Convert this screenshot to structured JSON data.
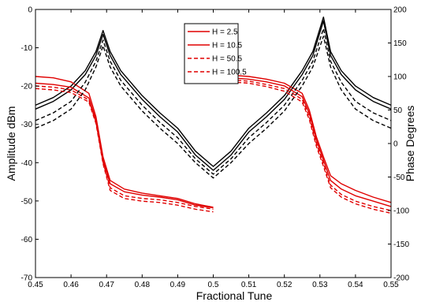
{
  "chart_data": {
    "type": "line",
    "xlabel": "Fractional Tune",
    "ylabel_left": "Amplitude dBm",
    "ylabel_right": "Phase Degrees",
    "xlim": [
      0.45,
      0.55
    ],
    "ylim_left": [
      -70,
      0
    ],
    "ylim_right": [
      -200,
      200
    ],
    "x_ticks": [
      "0.45",
      "0.46",
      "0.47",
      "0.48",
      "0.49",
      "0.5",
      "0.51",
      "0.52",
      "0.53",
      "0.54",
      "0.55"
    ],
    "y_ticks_left": [
      "-70",
      "-60",
      "-50",
      "-40",
      "-30",
      "-20",
      "-10",
      "0"
    ],
    "y_ticks_right": [
      "-200",
      "-150",
      "-100",
      "-50",
      "0",
      "50",
      "100",
      "150",
      "200"
    ],
    "grid": false,
    "legend_position": "top-center",
    "colors": {
      "amplitude": "#000000",
      "phase": "#e00000"
    },
    "series": [
      {
        "name": "H = 2.5",
        "style": "solid",
        "amplitude": {
          "x": [
            0.45,
            0.455,
            0.46,
            0.464,
            0.467,
            0.469,
            0.471,
            0.474,
            0.48,
            0.485,
            0.49,
            0.495,
            0.5,
            0.505,
            0.51,
            0.515,
            0.52,
            0.525,
            0.528,
            0.531,
            0.533,
            0.536,
            0.54,
            0.545,
            0.55
          ],
          "y": [
            -25,
            -23,
            -20,
            -16,
            -11,
            -5.5,
            -11,
            -16,
            -22.5,
            -27,
            -31,
            -37,
            -41,
            -37,
            -31,
            -27,
            -22.5,
            -16,
            -11,
            -2,
            -11,
            -16,
            -20,
            -23,
            -25
          ]
        },
        "phase": {
          "x": [
            0.45,
            0.455,
            0.46,
            0.465,
            0.467,
            0.469,
            0.471,
            0.475,
            0.48,
            0.485,
            0.49,
            0.495,
            0.5,
            0.505,
            0.51,
            0.515,
            0.52,
            0.525,
            0.527,
            0.529,
            0.531,
            0.533,
            0.536,
            0.54,
            0.545,
            0.55
          ],
          "y": [
            100,
            98,
            92,
            75,
            40,
            -20,
            -55,
            -68,
            -74,
            -78,
            -82,
            -90,
            -95,
            102,
            100,
            96,
            90,
            75,
            50,
            10,
            -20,
            -48,
            -60,
            -70,
            -80,
            -88
          ]
        }
      },
      {
        "name": "H = 10.5",
        "style": "solid",
        "amplitude": {
          "x": [
            0.45,
            0.455,
            0.46,
            0.464,
            0.467,
            0.469,
            0.471,
            0.474,
            0.48,
            0.485,
            0.49,
            0.495,
            0.5,
            0.505,
            0.51,
            0.515,
            0.52,
            0.525,
            0.528,
            0.531,
            0.533,
            0.536,
            0.54,
            0.545,
            0.55
          ],
          "y": [
            -26,
            -24,
            -21,
            -17,
            -12,
            -6.5,
            -12,
            -17,
            -23.5,
            -28,
            -32,
            -38,
            -42,
            -38,
            -32,
            -28,
            -23.5,
            -17,
            -12,
            -3,
            -12,
            -17,
            -21,
            -24,
            -26
          ]
        },
        "phase": {
          "x": [
            0.45,
            0.455,
            0.46,
            0.465,
            0.467,
            0.469,
            0.471,
            0.475,
            0.48,
            0.485,
            0.49,
            0.495,
            0.5,
            0.505,
            0.51,
            0.515,
            0.52,
            0.525,
            0.527,
            0.529,
            0.531,
            0.533,
            0.536,
            0.54,
            0.545,
            0.55
          ],
          "y": [
            90,
            88,
            84,
            68,
            35,
            -25,
            -60,
            -72,
            -77,
            -80,
            -84,
            -92,
            -96,
            98,
            96,
            92,
            86,
            70,
            45,
            5,
            -25,
            -55,
            -68,
            -78,
            -86,
            -94
          ]
        }
      },
      {
        "name": "H = 50.5",
        "style": "dashed",
        "amplitude": {
          "x": [
            0.45,
            0.455,
            0.46,
            0.464,
            0.467,
            0.469,
            0.471,
            0.474,
            0.48,
            0.485,
            0.49,
            0.495,
            0.5,
            0.505,
            0.51,
            0.515,
            0.52,
            0.525,
            0.528,
            0.531,
            0.533,
            0.536,
            0.54,
            0.545,
            0.55
          ],
          "y": [
            -29,
            -27,
            -24,
            -19,
            -13.5,
            -8,
            -13.5,
            -18.5,
            -25,
            -29.5,
            -33.5,
            -39,
            -43,
            -39,
            -33.5,
            -29.5,
            -25,
            -18.5,
            -13.5,
            -5,
            -13.5,
            -19,
            -24,
            -27,
            -29
          ]
        },
        "phase": {
          "x": [
            0.45,
            0.455,
            0.46,
            0.465,
            0.467,
            0.469,
            0.471,
            0.475,
            0.48,
            0.485,
            0.49,
            0.495,
            0.5,
            0.505,
            0.51,
            0.515,
            0.52,
            0.525,
            0.527,
            0.529,
            0.531,
            0.533,
            0.536,
            0.54,
            0.545,
            0.55
          ],
          "y": [
            86,
            84,
            80,
            65,
            32,
            -28,
            -66,
            -78,
            -82,
            -84,
            -88,
            -94,
            -98,
            95,
            93,
            88,
            82,
            66,
            40,
            0,
            -30,
            -62,
            -76,
            -86,
            -94,
            -100
          ]
        }
      },
      {
        "name": "H = 100.5",
        "style": "dashed",
        "amplitude": {
          "x": [
            0.45,
            0.455,
            0.46,
            0.464,
            0.467,
            0.469,
            0.471,
            0.474,
            0.48,
            0.485,
            0.49,
            0.495,
            0.5,
            0.505,
            0.51,
            0.515,
            0.52,
            0.525,
            0.528,
            0.531,
            0.533,
            0.536,
            0.54,
            0.545,
            0.55
          ],
          "y": [
            -31,
            -29,
            -26,
            -21,
            -15,
            -9.5,
            -15,
            -20,
            -26.5,
            -31,
            -35,
            -40,
            -44,
            -40,
            -35,
            -31,
            -26.5,
            -20,
            -15,
            -7,
            -15,
            -21,
            -26,
            -29,
            -31
          ]
        },
        "phase": {
          "x": [
            0.45,
            0.455,
            0.46,
            0.465,
            0.467,
            0.469,
            0.471,
            0.475,
            0.48,
            0.485,
            0.49,
            0.495,
            0.5,
            0.505,
            0.51,
            0.515,
            0.52,
            0.525,
            0.527,
            0.529,
            0.531,
            0.533,
            0.536,
            0.54,
            0.545,
            0.55
          ],
          "y": [
            82,
            80,
            76,
            62,
            30,
            -30,
            -70,
            -82,
            -86,
            -88,
            -92,
            -98,
            -102,
            92,
            90,
            85,
            78,
            62,
            36,
            -4,
            -34,
            -66,
            -80,
            -90,
            -98,
            -104
          ]
        }
      }
    ]
  }
}
